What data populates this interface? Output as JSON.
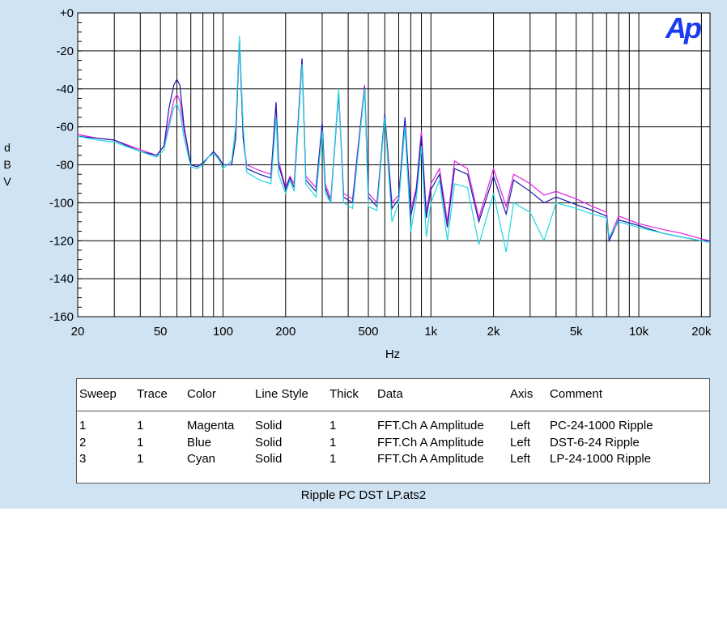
{
  "chart_data": {
    "type": "line",
    "title": "",
    "xlabel": "Hz",
    "ylabel": "dBV",
    "x_scale": "log",
    "xlim": [
      20,
      22000
    ],
    "ylim": [
      -160,
      0
    ],
    "grid": true,
    "x_ticks": [
      {
        "value": 20,
        "label": "20"
      },
      {
        "value": 50,
        "label": "50"
      },
      {
        "value": 100,
        "label": "100"
      },
      {
        "value": 200,
        "label": "200"
      },
      {
        "value": 500,
        "label": "500"
      },
      {
        "value": 1000,
        "label": "1k"
      },
      {
        "value": 2000,
        "label": "2k"
      },
      {
        "value": 5000,
        "label": "5k"
      },
      {
        "value": 10000,
        "label": "10k"
      },
      {
        "value": 20000,
        "label": "20k"
      }
    ],
    "y_ticks": [
      {
        "value": 0,
        "label": "+0"
      },
      {
        "value": -20,
        "label": "-20"
      },
      {
        "value": -40,
        "label": "-40"
      },
      {
        "value": -60,
        "label": "-60"
      },
      {
        "value": -80,
        "label": "-80"
      },
      {
        "value": -100,
        "label": "-100"
      },
      {
        "value": -120,
        "label": "-120"
      },
      {
        "value": -140,
        "label": "-140"
      },
      {
        "value": -160,
        "label": "-160"
      }
    ],
    "series": [
      {
        "name": "PC-24-1000 Ripple",
        "color": "#e020e0",
        "points": [
          [
            20,
            -64
          ],
          [
            25,
            -66
          ],
          [
            30,
            -67
          ],
          [
            40,
            -72
          ],
          [
            48,
            -75
          ],
          [
            52,
            -70
          ],
          [
            55,
            -58
          ],
          [
            58,
            -46
          ],
          [
            60,
            -43
          ],
          [
            62,
            -46
          ],
          [
            65,
            -62
          ],
          [
            70,
            -80
          ],
          [
            75,
            -81
          ],
          [
            80,
            -79
          ],
          [
            85,
            -76
          ],
          [
            90,
            -73
          ],
          [
            95,
            -76
          ],
          [
            100,
            -80
          ],
          [
            110,
            -80
          ],
          [
            115,
            -66
          ],
          [
            120,
            -13
          ],
          [
            125,
            -66
          ],
          [
            130,
            -80
          ],
          [
            150,
            -83
          ],
          [
            170,
            -85
          ],
          [
            180,
            -48
          ],
          [
            185,
            -78
          ],
          [
            200,
            -92
          ],
          [
            210,
            -86
          ],
          [
            220,
            -90
          ],
          [
            240,
            -24
          ],
          [
            250,
            -86
          ],
          [
            280,
            -92
          ],
          [
            300,
            -58
          ],
          [
            310,
            -90
          ],
          [
            330,
            -98
          ],
          [
            360,
            -41
          ],
          [
            380,
            -95
          ],
          [
            420,
            -98
          ],
          [
            480,
            -38
          ],
          [
            500,
            -95
          ],
          [
            550,
            -100
          ],
          [
            600,
            -54
          ],
          [
            650,
            -100
          ],
          [
            700,
            -96
          ],
          [
            750,
            -56
          ],
          [
            800,
            -104
          ],
          [
            850,
            -92
          ],
          [
            900,
            -62
          ],
          [
            950,
            -105
          ],
          [
            1000,
            -90
          ],
          [
            1100,
            -82
          ],
          [
            1200,
            -110
          ],
          [
            1300,
            -78
          ],
          [
            1500,
            -82
          ],
          [
            1700,
            -108
          ],
          [
            2000,
            -82
          ],
          [
            2300,
            -102
          ],
          [
            2500,
            -85
          ],
          [
            3000,
            -90
          ],
          [
            3500,
            -96
          ],
          [
            4000,
            -94
          ],
          [
            5000,
            -98
          ],
          [
            6000,
            -102
          ],
          [
            7000,
            -105
          ],
          [
            7200,
            -119
          ],
          [
            8000,
            -107
          ],
          [
            10000,
            -111
          ],
          [
            13000,
            -114
          ],
          [
            16000,
            -116
          ],
          [
            20000,
            -119
          ],
          [
            22000,
            -120
          ]
        ]
      },
      {
        "name": "DST-6-24 Ripple",
        "color": "#1c1ca8",
        "points": [
          [
            20,
            -65
          ],
          [
            25,
            -66
          ],
          [
            30,
            -67
          ],
          [
            40,
            -73
          ],
          [
            48,
            -75
          ],
          [
            52,
            -70
          ],
          [
            55,
            -50
          ],
          [
            58,
            -38
          ],
          [
            60,
            -35
          ],
          [
            62,
            -38
          ],
          [
            65,
            -60
          ],
          [
            70,
            -80
          ],
          [
            75,
            -81
          ],
          [
            80,
            -79
          ],
          [
            85,
            -76
          ],
          [
            90,
            -73
          ],
          [
            95,
            -76
          ],
          [
            100,
            -80
          ],
          [
            110,
            -80
          ],
          [
            115,
            -66
          ],
          [
            120,
            -13
          ],
          [
            125,
            -66
          ],
          [
            130,
            -82
          ],
          [
            150,
            -85
          ],
          [
            170,
            -87
          ],
          [
            180,
            -47
          ],
          [
            185,
            -80
          ],
          [
            200,
            -93
          ],
          [
            210,
            -87
          ],
          [
            220,
            -92
          ],
          [
            240,
            -24
          ],
          [
            250,
            -88
          ],
          [
            280,
            -94
          ],
          [
            300,
            -58
          ],
          [
            310,
            -92
          ],
          [
            330,
            -100
          ],
          [
            360,
            -42
          ],
          [
            380,
            -97
          ],
          [
            420,
            -100
          ],
          [
            480,
            -39
          ],
          [
            500,
            -97
          ],
          [
            550,
            -102
          ],
          [
            600,
            -53
          ],
          [
            650,
            -103
          ],
          [
            700,
            -98
          ],
          [
            750,
            -55
          ],
          [
            800,
            -107
          ],
          [
            850,
            -94
          ],
          [
            900,
            -65
          ],
          [
            950,
            -108
          ],
          [
            1000,
            -93
          ],
          [
            1100,
            -85
          ],
          [
            1200,
            -113
          ],
          [
            1300,
            -82
          ],
          [
            1500,
            -85
          ],
          [
            1700,
            -110
          ],
          [
            2000,
            -86
          ],
          [
            2300,
            -106
          ],
          [
            2500,
            -88
          ],
          [
            3000,
            -94
          ],
          [
            3500,
            -100
          ],
          [
            4000,
            -97
          ],
          [
            5000,
            -101
          ],
          [
            6000,
            -104
          ],
          [
            7000,
            -107
          ],
          [
            7200,
            -120
          ],
          [
            8000,
            -109
          ],
          [
            10000,
            -112
          ],
          [
            13000,
            -116
          ],
          [
            16000,
            -118
          ],
          [
            20000,
            -120
          ],
          [
            22000,
            -120
          ]
        ]
      },
      {
        "name": "LP-24-1000 Ripple",
        "color": "#20d8e0",
        "points": [
          [
            20,
            -65
          ],
          [
            25,
            -67
          ],
          [
            30,
            -68
          ],
          [
            40,
            -73
          ],
          [
            48,
            -76
          ],
          [
            52,
            -72
          ],
          [
            55,
            -60
          ],
          [
            58,
            -50
          ],
          [
            60,
            -48
          ],
          [
            62,
            -52
          ],
          [
            65,
            -66
          ],
          [
            70,
            -81
          ],
          [
            75,
            -82
          ],
          [
            80,
            -80
          ],
          [
            85,
            -76
          ],
          [
            90,
            -74
          ],
          [
            95,
            -77
          ],
          [
            100,
            -82
          ],
          [
            110,
            -78
          ],
          [
            115,
            -60
          ],
          [
            120,
            -12
          ],
          [
            125,
            -60
          ],
          [
            130,
            -84
          ],
          [
            150,
            -88
          ],
          [
            170,
            -90
          ],
          [
            180,
            -55
          ],
          [
            185,
            -85
          ],
          [
            200,
            -95
          ],
          [
            210,
            -88
          ],
          [
            220,
            -94
          ],
          [
            240,
            -27
          ],
          [
            250,
            -90
          ],
          [
            280,
            -97
          ],
          [
            300,
            -62
          ],
          [
            310,
            -95
          ],
          [
            330,
            -100
          ],
          [
            360,
            -40
          ],
          [
            380,
            -100
          ],
          [
            420,
            -103
          ],
          [
            480,
            -40
          ],
          [
            500,
            -102
          ],
          [
            550,
            -104
          ],
          [
            600,
            -55
          ],
          [
            650,
            -110
          ],
          [
            700,
            -100
          ],
          [
            750,
            -60
          ],
          [
            800,
            -115
          ],
          [
            850,
            -98
          ],
          [
            900,
            -70
          ],
          [
            950,
            -118
          ],
          [
            1000,
            -100
          ],
          [
            1100,
            -88
          ],
          [
            1200,
            -120
          ],
          [
            1300,
            -90
          ],
          [
            1500,
            -92
          ],
          [
            1700,
            -122
          ],
          [
            2000,
            -95
          ],
          [
            2300,
            -126
          ],
          [
            2500,
            -100
          ],
          [
            3000,
            -105
          ],
          [
            3500,
            -120
          ],
          [
            4000,
            -100
          ],
          [
            5000,
            -103
          ],
          [
            6000,
            -106
          ],
          [
            7000,
            -108
          ],
          [
            7200,
            -118
          ],
          [
            8000,
            -110
          ],
          [
            10000,
            -113
          ],
          [
            13000,
            -116
          ],
          [
            16000,
            -118
          ],
          [
            20000,
            -120
          ],
          [
            22000,
            -121
          ]
        ]
      }
    ]
  },
  "legend": {
    "headers": [
      "Sweep",
      "Trace",
      "Color",
      "Line Style",
      "Thick",
      "Data",
      "Axis",
      "Comment"
    ],
    "rows": [
      [
        "1",
        "1",
        "Magenta",
        "Solid",
        "1",
        "FFT.Ch A Amplitude",
        "Left",
        "PC-24-1000 Ripple"
      ],
      [
        "2",
        "1",
        "Blue",
        "Solid",
        "1",
        "FFT.Ch A Amplitude",
        "Left",
        "DST-6-24 Ripple"
      ],
      [
        "3",
        "1",
        "Cyan",
        "Solid",
        "1",
        "FFT.Ch A Amplitude",
        "Left",
        "LP-24-1000 Ripple"
      ]
    ]
  },
  "ylabel_letters": [
    "d",
    "B",
    "V"
  ],
  "caption": "Ripple PC DST LP.ats2",
  "logo_text": "Ap"
}
